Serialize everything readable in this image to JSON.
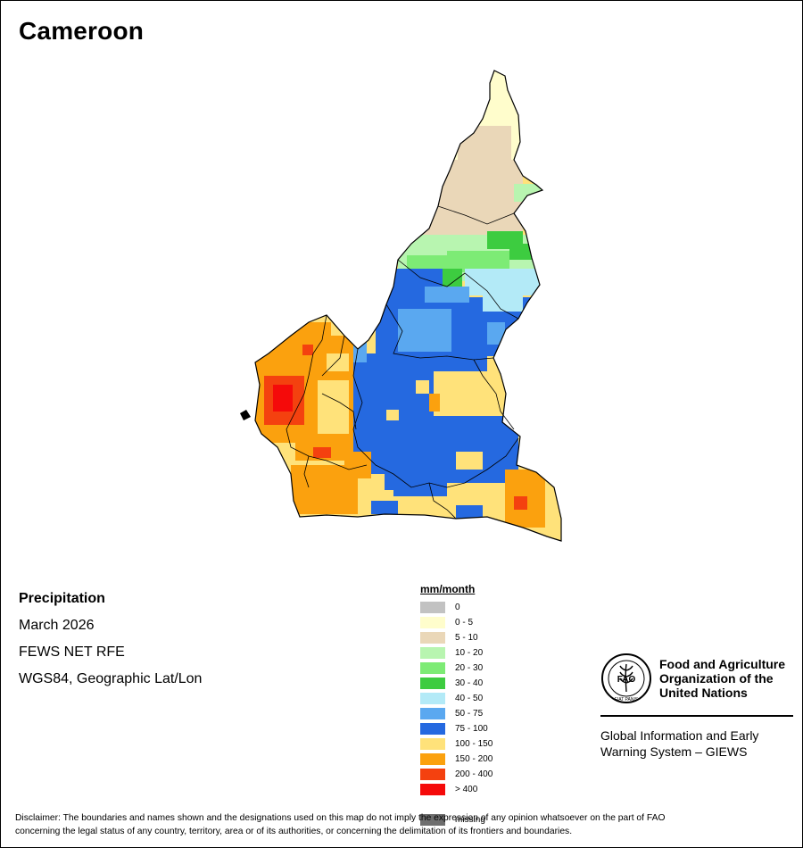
{
  "map": {
    "country": "Cameroon",
    "colors": {
      "c0": "#c2c2c2",
      "c0_5": "#fffdcc",
      "c5_10": "#ead7b8",
      "c10_20": "#b8f5b0",
      "c20_30": "#7deb75",
      "c30_40": "#3dcc40",
      "c40_50": "#b3eaf7",
      "c50_75": "#5aa8f0",
      "c75_100": "#2569e0",
      "c100_150": "#ffe27a",
      "c150_200": "#fba10e",
      "c200_400": "#f4410f",
      "c400": "#f50a0a",
      "missing": "#6e6e6e",
      "border": "#000000"
    }
  },
  "info": {
    "title": "Precipitation",
    "period": "March 2026",
    "source": "FEWS NET RFE",
    "projection": "WGS84, Geographic Lat/Lon"
  },
  "legend": {
    "unit_title": "mm/month",
    "items": [
      {
        "label": "0",
        "color": "#c2c2c2"
      },
      {
        "label": "0 - 5",
        "color": "#fffdcc"
      },
      {
        "label": "5 - 10",
        "color": "#ead7b8"
      },
      {
        "label": "10 - 20",
        "color": "#b8f5b0"
      },
      {
        "label": "20 - 30",
        "color": "#7deb75"
      },
      {
        "label": "30 - 40",
        "color": "#3dcc40"
      },
      {
        "label": "40 - 50",
        "color": "#b3eaf7"
      },
      {
        "label": "50 - 75",
        "color": "#5aa8f0"
      },
      {
        "label": "75 - 100",
        "color": "#2569e0"
      },
      {
        "label": "100 - 150",
        "color": "#ffe27a"
      },
      {
        "label": "150 - 200",
        "color": "#fba10e"
      },
      {
        "label": "200 - 400",
        "color": "#f4410f"
      },
      {
        "label": "> 400",
        "color": "#f50a0a"
      },
      {
        "label": "",
        "color": "#ffffff"
      },
      {
        "label": "missing",
        "color": "#6e6e6e"
      }
    ]
  },
  "fao": {
    "logo_text": "FAO",
    "logo_motto": "FIAT PANIS",
    "name_line1": "Food and Agriculture",
    "name_line2": "Organization of the",
    "name_line3": "United Nations",
    "giews_line1": "Global Information and Early",
    "giews_line2": "Warning System – GIEWS"
  },
  "disclaimer": {
    "line1": "Disclaimer: The boundaries and names shown and the designations used on this map do not imply the expression of any opinion whatsoever on the part of FAO",
    "line2": "concerning the legal status of any country, territory, area or of its authorities, or concerning the delimitation of its frontiers and boundaries."
  }
}
